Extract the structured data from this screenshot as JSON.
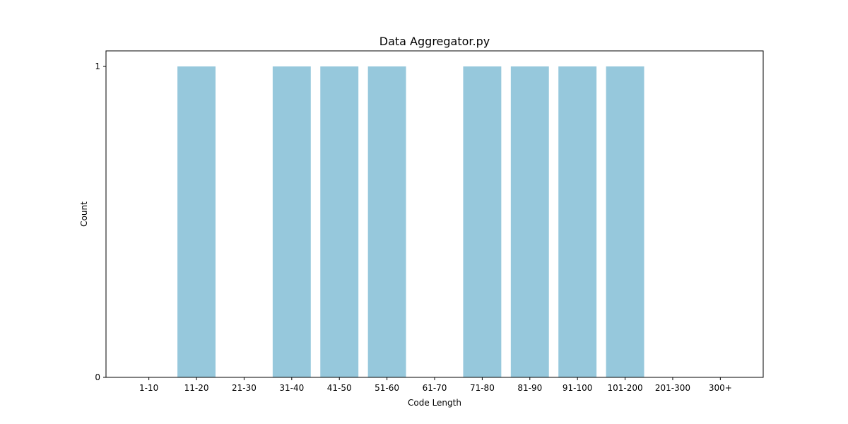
{
  "chart_data": {
    "type": "bar",
    "title": "Data Aggregator.py",
    "xlabel": "Code Length",
    "ylabel": "Count",
    "categories": [
      "1-10",
      "11-20",
      "21-30",
      "31-40",
      "41-50",
      "51-60",
      "61-70",
      "71-80",
      "81-90",
      "91-100",
      "101-200",
      "201-300",
      "300+"
    ],
    "values": [
      0,
      1,
      0,
      1,
      1,
      1,
      0,
      1,
      1,
      1,
      1,
      0,
      0
    ],
    "yticks": [
      "0",
      "1"
    ],
    "ylim": [
      0,
      1.05
    ],
    "grid": false,
    "legend": "none",
    "bar_color": "#96c8dc"
  }
}
